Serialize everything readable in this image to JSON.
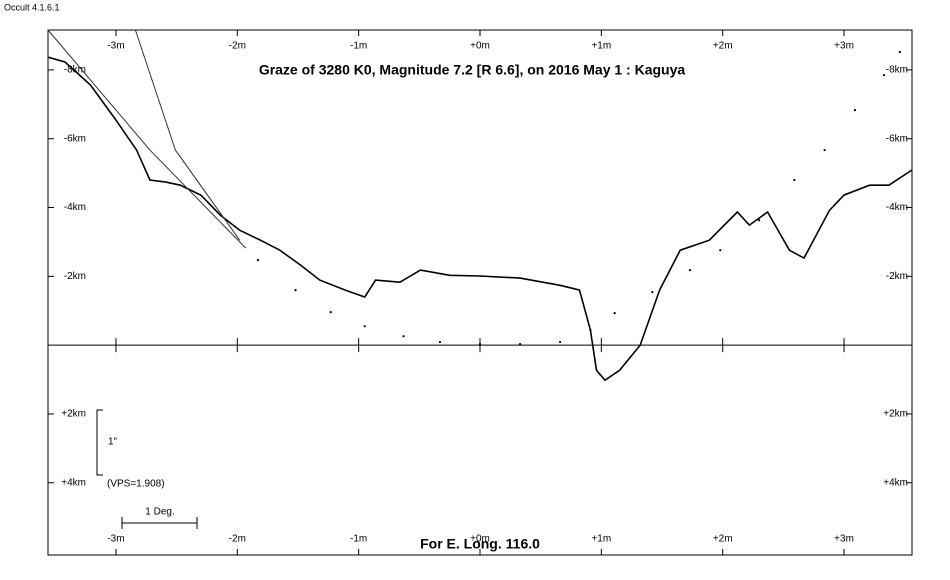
{
  "window_title": "Occult 4.1.6.1",
  "chart_data": {
    "type": "line",
    "title": "Graze of  3280 K0,  Magnitude 7.2 [R 6.6],  on 2016 May  1  :  Kaguya",
    "footer": "For E. Long. 116.0",
    "scale_label": "1\"",
    "vps_label": "(VPS=1.908)",
    "degree_label": "1 Deg.",
    "xlim": [
      -3.56,
      3.56
    ],
    "ylim": [
      6.1,
      -9.16
    ],
    "xticks": [
      {
        "value": -3,
        "label": "-3m"
      },
      {
        "value": -2,
        "label": "-2m"
      },
      {
        "value": -1,
        "label": "-1m"
      },
      {
        "value": 0,
        "label": "+0m"
      },
      {
        "value": 1,
        "label": "+1m"
      },
      {
        "value": 2,
        "label": "+2m"
      },
      {
        "value": 3,
        "label": "+3m"
      }
    ],
    "yticks": [
      {
        "value": -8,
        "label": "-8km"
      },
      {
        "value": -6,
        "label": "-6km"
      },
      {
        "value": -4,
        "label": "-4km"
      },
      {
        "value": -2,
        "label": "-2km"
      },
      {
        "value": 2,
        "label": "+2km"
      },
      {
        "value": 4,
        "label": "+4km"
      }
    ],
    "series": [
      {
        "style": "line",
        "color": "#000000",
        "x": [
          -3.56,
          -3.42,
          -3.21,
          -3.0,
          -2.83,
          -2.72,
          -2.59,
          -2.47,
          -2.3,
          -2.14,
          -1.98,
          -1.81,
          -1.65,
          -1.48,
          -1.32,
          -1.11,
          -0.95,
          -0.86,
          -0.66,
          -0.49,
          -0.25,
          0,
          0.33,
          0.66,
          0.82,
          0.91,
          0.96,
          1.03,
          1.15,
          1.32,
          1.48,
          1.65,
          1.89,
          2.12,
          2.22,
          2.37,
          2.55,
          2.67,
          2.88,
          3.0,
          3.21,
          3.37,
          3.56
        ],
        "values": [
          -8.37,
          -8.23,
          -7.56,
          -6.54,
          -5.67,
          -4.8,
          -4.74,
          -4.65,
          -4.36,
          -3.78,
          -3.34,
          -3.05,
          -2.76,
          -2.33,
          -1.89,
          -1.6,
          -1.4,
          -1.89,
          -1.83,
          -2.18,
          -2.03,
          -2.01,
          -1.95,
          -1.74,
          -1.6,
          -0.44,
          0.73,
          1.02,
          0.73,
          0,
          -1.6,
          -2.76,
          -3.05,
          -3.87,
          -3.49,
          -3.87,
          -2.76,
          -2.53,
          -3.92,
          -4.36,
          -4.65,
          -4.65,
          -5.09
        ]
      },
      {
        "style": "line",
        "color": "#333333",
        "x": [
          -3.56,
          -2.72,
          -1.93
        ],
        "values": [
          -9.16,
          -5.67,
          -2.82
        ]
      },
      {
        "style": "line",
        "color": "#333333",
        "x": [
          -2.84,
          -2.51,
          -1.98
        ],
        "values": [
          -9.16,
          -5.67,
          -3.05
        ]
      },
      {
        "style": "dots",
        "color": "#000000",
        "x": [
          -1.83,
          -1.52,
          -1.23,
          -0.95,
          -0.63,
          -0.33,
          0,
          0.33,
          0.66,
          0.91,
          1.11,
          1.42,
          1.73,
          1.98,
          2.3,
          2.59,
          2.84,
          3.09,
          3.33,
          3.46
        ],
        "values": [
          -2.47,
          -1.6,
          -0.96,
          -0.55,
          -0.26,
          -0.09,
          -0.03,
          -0.03,
          -0.09,
          -0.44,
          -0.93,
          -1.54,
          -2.18,
          -2.76,
          -3.63,
          -4.8,
          -5.67,
          -6.83,
          -7.85,
          -8.52
        ]
      }
    ]
  }
}
